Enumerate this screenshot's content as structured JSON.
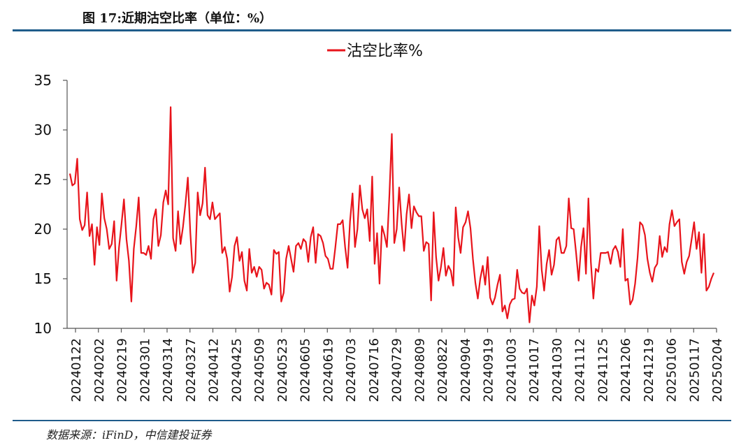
{
  "figure": {
    "title": "图 17:近期沽空比率（单位：%）",
    "source": "数据来源：iFinD，中信建投证券"
  },
  "colors": {
    "series": "#e8141b",
    "rule": "#1f5c8b",
    "axis": "#555555"
  },
  "chart_data": {
    "type": "line",
    "title": "",
    "xlabel": "",
    "ylabel": "",
    "ylim": [
      10,
      35
    ],
    "y_ticks": [
      10,
      15,
      20,
      25,
      30,
      35
    ],
    "grid": false,
    "legend_position": "top-center",
    "x_ticks": [
      "20240122",
      "20240202",
      "20240219",
      "20240301",
      "20240314",
      "20240327",
      "20240412",
      "20240425",
      "20240509",
      "20240523",
      "20240605",
      "20240619",
      "20240703",
      "20240716",
      "20240729",
      "20240809",
      "20240822",
      "20240904",
      "20240919",
      "20241003",
      "20241017",
      "20241030",
      "20241112",
      "20241125",
      "20241206",
      "20241219",
      "20250106",
      "20250117",
      "20250204"
    ],
    "series": [
      {
        "name": "沽空比率%",
        "values": [
          25.6,
          24.4,
          24.6,
          27.1,
          21.0,
          19.9,
          20.4,
          23.7,
          19.3,
          20.5,
          16.4,
          20.2,
          18.4,
          23.6,
          21.1,
          20.0,
          18.0,
          18.5,
          20.8,
          14.8,
          18.2,
          20.5,
          23.0,
          19.0,
          16.8,
          12.7,
          18.0,
          20.3,
          23.2,
          17.6,
          17.6,
          17.4,
          18.3,
          17.0,
          21.0,
          22.0,
          18.3,
          19.4,
          22.7,
          23.9,
          22.5,
          32.3,
          19.1,
          17.8,
          21.8,
          18.5,
          20.2,
          22.5,
          25.2,
          19.7,
          15.6,
          16.6,
          23.7,
          21.4,
          22.6,
          26.2,
          21.4,
          21.0,
          22.7,
          21.0,
          21.3,
          21.6,
          17.6,
          18.2,
          17.0,
          13.7,
          15.2,
          18.3,
          19.2,
          16.8,
          17.7,
          14.8,
          13.8,
          18.0,
          15.6,
          16.2,
          15.2,
          16.2,
          15.9,
          14.0,
          14.6,
          14.4,
          13.4,
          17.9,
          17.5,
          17.7,
          12.7,
          13.6,
          17.0,
          18.3,
          17.0,
          15.7,
          18.3,
          18.6,
          18.0,
          19.0,
          18.7,
          16.7,
          19.2,
          20.2,
          16.6,
          19.5,
          19.3,
          18.6,
          17.3,
          17.0,
          16.0,
          16.0,
          18.1,
          20.5,
          20.5,
          20.9,
          18.2,
          16.1,
          20.8,
          23.6,
          18.2,
          20.0,
          24.4,
          22.0,
          21.1,
          22.0,
          18.8,
          25.3,
          16.5,
          19.6,
          14.5,
          20.3,
          19.4,
          18.2,
          23.4,
          29.6,
          18.6,
          20.0,
          24.2,
          20.5,
          17.8,
          21.5,
          23.5,
          20.1,
          22.3,
          21.7,
          21.3,
          21.3,
          17.8,
          18.7,
          18.5,
          12.8,
          21.7,
          17.2,
          14.8,
          16.2,
          18.1,
          15.3,
          16.3,
          15.8,
          14.3,
          22.2,
          19.2,
          17.6,
          20.2,
          20.7,
          21.8,
          20.1,
          17.0,
          14.6,
          13.0,
          15.0,
          16.3,
          14.4,
          17.2,
          13.1,
          12.4,
          13.1,
          14.4,
          15.4,
          11.7,
          12.3,
          11.0,
          12.4,
          12.9,
          13.0,
          15.9,
          14.0,
          13.6,
          13.5,
          14.0,
          10.6,
          13.3,
          12.3,
          14.2,
          20.3,
          15.9,
          13.8,
          16.5,
          17.9,
          15.4,
          16.4,
          18.9,
          19.2,
          17.6,
          17.6,
          18.3,
          23.1,
          20.1,
          20.0,
          17.6,
          14.8,
          18.2,
          20.1,
          15.5,
          23.1,
          16.7,
          13.0,
          16.0,
          15.7,
          17.6,
          17.6,
          17.6,
          17.7,
          16.5,
          17.9,
          18.3,
          17.7,
          16.2,
          20.0,
          14.8,
          15.0,
          12.4,
          12.9,
          14.5,
          17.1,
          20.7,
          20.4,
          19.4,
          17.0,
          15.6,
          14.7,
          16.1,
          16.5,
          19.3,
          17.2,
          18.2,
          17.7,
          20.5,
          21.9,
          20.3,
          20.7,
          21.0,
          16.7,
          15.5,
          16.7,
          17.3,
          19.0,
          20.7,
          18.0,
          19.7,
          15.6,
          19.5,
          13.8,
          14.2,
          15.0,
          15.6
        ]
      }
    ]
  }
}
